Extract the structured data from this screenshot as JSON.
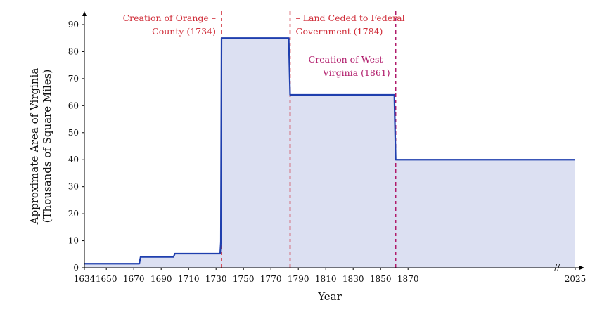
{
  "chart_data": {
    "type": "area",
    "title": "",
    "xlabel": "Year",
    "ylabel_lines": [
      "Approximate Area of Virginia",
      "(Thousands of Square Miles)"
    ],
    "ylim": [
      0,
      90
    ],
    "yticks": [
      0,
      10,
      20,
      30,
      40,
      50,
      60,
      70,
      80,
      90
    ],
    "xticks": [
      "1634",
      "1650",
      "1670",
      "1690",
      "1710",
      "1730",
      "1750",
      "1770",
      "1790",
      "1810",
      "1830",
      "1850",
      "1870",
      "2025"
    ],
    "axis_break": "//",
    "series": [
      {
        "name": "Approximate Area of Virginia",
        "color": "#1f3fae",
        "fill": "#dce0f2",
        "points": [
          {
            "x": 1634,
            "y": 1.5
          },
          {
            "x": 1674,
            "y": 1.5
          },
          {
            "x": 1675,
            "y": 4
          },
          {
            "x": 1699,
            "y": 4
          },
          {
            "x": 1700,
            "y": 5.2
          },
          {
            "x": 1733,
            "y": 5.2
          },
          {
            "x": 1733.5,
            "y": 9.5
          },
          {
            "x": 1734,
            "y": 85
          },
          {
            "x": 1783,
            "y": 85
          },
          {
            "x": 1784,
            "y": 64
          },
          {
            "x": 1860,
            "y": 64
          },
          {
            "x": 1861,
            "y": 40
          },
          {
            "x": 1890,
            "y": 40
          }
        ]
      }
    ],
    "annotations": [
      {
        "year": 1734,
        "label_lines": [
          "Creation of Orange –",
          "County (1734)"
        ],
        "color": "#d02e3a",
        "side": "left",
        "row": "top"
      },
      {
        "year": 1784,
        "label_lines": [
          "– Land Ceded to Federal",
          "Government (1784)"
        ],
        "color": "#d02e3a",
        "side": "right",
        "row": "top"
      },
      {
        "year": 1861,
        "label_lines": [
          "Creation of West –",
          "Virginia (1861)"
        ],
        "color": "#b01a6a",
        "side": "left",
        "row": "middle"
      }
    ]
  }
}
